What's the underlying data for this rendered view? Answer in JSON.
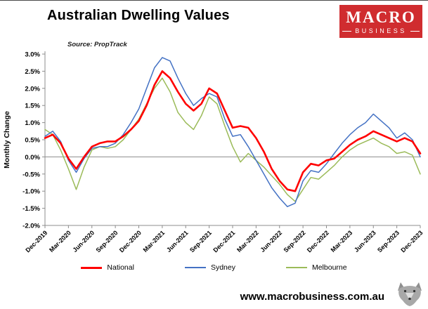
{
  "header": {
    "title": "Australian Dwelling Values",
    "source": "Source: PropTrack",
    "logo": {
      "line1": "MACRO",
      "line2": "BUSINESS",
      "bg_color": "#d02c2f",
      "text_color": "#ffffff"
    }
  },
  "chart_data": {
    "type": "line",
    "title": "Australian Dwelling Values",
    "xlabel": "",
    "ylabel": "Monthly Change",
    "ylim": [
      -2.0,
      3.0
    ],
    "ytick_step": 0.5,
    "ytick_labels": [
      "3.0%",
      "2.5%",
      "2.0%",
      "1.5%",
      "1.0%",
      "0.5%",
      "0.0%",
      "-0.5%",
      "-1.0%",
      "-1.5%",
      "-2.0%"
    ],
    "grid": "zero-line-only",
    "legend_position": "bottom",
    "x_tick_interval": 3,
    "x_tick_labels": [
      "Dec-2019",
      "Mar-2020",
      "Jun-2020",
      "Sep-2020",
      "Dec-2020",
      "Mar-2021",
      "Jun-2021",
      "Sep-2021",
      "Dec-2021",
      "Mar-2022",
      "Jun-2022",
      "Sep-2022",
      "Dec-2022",
      "Mar-2023",
      "Jun-2023",
      "Sep-2023",
      "Dec-2023"
    ],
    "x_months": [
      "Dec-2019",
      "Jan-2020",
      "Feb-2020",
      "Mar-2020",
      "Apr-2020",
      "May-2020",
      "Jun-2020",
      "Jul-2020",
      "Aug-2020",
      "Sep-2020",
      "Oct-2020",
      "Nov-2020",
      "Dec-2020",
      "Jan-2021",
      "Feb-2021",
      "Mar-2021",
      "Apr-2021",
      "May-2021",
      "Jun-2021",
      "Jul-2021",
      "Aug-2021",
      "Sep-2021",
      "Oct-2021",
      "Nov-2021",
      "Dec-2021",
      "Jan-2022",
      "Feb-2022",
      "Mar-2022",
      "Apr-2022",
      "May-2022",
      "Jun-2022",
      "Jul-2022",
      "Aug-2022",
      "Sep-2022",
      "Oct-2022",
      "Nov-2022",
      "Dec-2022",
      "Jan-2023",
      "Feb-2023",
      "Mar-2023",
      "Apr-2023",
      "May-2023",
      "Jun-2023",
      "Jul-2023",
      "Aug-2023",
      "Sep-2023",
      "Oct-2023",
      "Nov-2023",
      "Dec-2023"
    ],
    "series": [
      {
        "name": "National",
        "color": "#ff0000",
        "width": 2.6,
        "values": [
          0.55,
          0.65,
          0.4,
          -0.05,
          -0.35,
          0.0,
          0.3,
          0.4,
          0.45,
          0.45,
          0.6,
          0.8,
          1.05,
          1.5,
          2.1,
          2.5,
          2.3,
          1.9,
          1.55,
          1.35,
          1.55,
          2.0,
          1.85,
          1.35,
          0.85,
          0.9,
          0.85,
          0.55,
          0.15,
          -0.35,
          -0.7,
          -0.95,
          -1.0,
          -0.45,
          -0.2,
          -0.25,
          -0.1,
          -0.05,
          0.15,
          0.35,
          0.5,
          0.6,
          0.75,
          0.65,
          0.55,
          0.45,
          0.55,
          0.45,
          0.1
        ]
      },
      {
        "name": "Sydney",
        "color": "#4472c4",
        "width": 1.5,
        "values": [
          0.6,
          0.75,
          0.45,
          -0.1,
          -0.45,
          -0.05,
          0.25,
          0.3,
          0.3,
          0.4,
          0.65,
          1.0,
          1.4,
          2.0,
          2.6,
          2.9,
          2.8,
          2.3,
          1.85,
          1.5,
          1.7,
          1.85,
          1.75,
          1.1,
          0.6,
          0.65,
          0.3,
          -0.1,
          -0.5,
          -0.9,
          -1.2,
          -1.45,
          -1.35,
          -0.7,
          -0.4,
          -0.45,
          -0.2,
          0.1,
          0.4,
          0.65,
          0.85,
          1.0,
          1.25,
          1.05,
          0.85,
          0.55,
          0.7,
          0.5,
          0.0
        ]
      },
      {
        "name": "Melbourne",
        "color": "#9bbb59",
        "width": 1.5,
        "values": [
          0.8,
          0.65,
          0.2,
          -0.35,
          -0.95,
          -0.3,
          0.2,
          0.3,
          0.25,
          0.3,
          0.5,
          0.8,
          1.1,
          1.55,
          2.0,
          2.3,
          1.9,
          1.3,
          1.0,
          0.8,
          1.2,
          1.75,
          1.55,
          0.9,
          0.3,
          -0.15,
          0.1,
          -0.1,
          -0.3,
          -0.55,
          -0.8,
          -1.1,
          -1.3,
          -0.95,
          -0.6,
          -0.65,
          -0.45,
          -0.25,
          0.0,
          0.2,
          0.35,
          0.45,
          0.55,
          0.4,
          0.3,
          0.1,
          0.15,
          0.05,
          -0.5
        ]
      }
    ]
  },
  "footer": {
    "url": "www.macrobusiness.com.au",
    "wolf_icon": "wolf-logo"
  }
}
